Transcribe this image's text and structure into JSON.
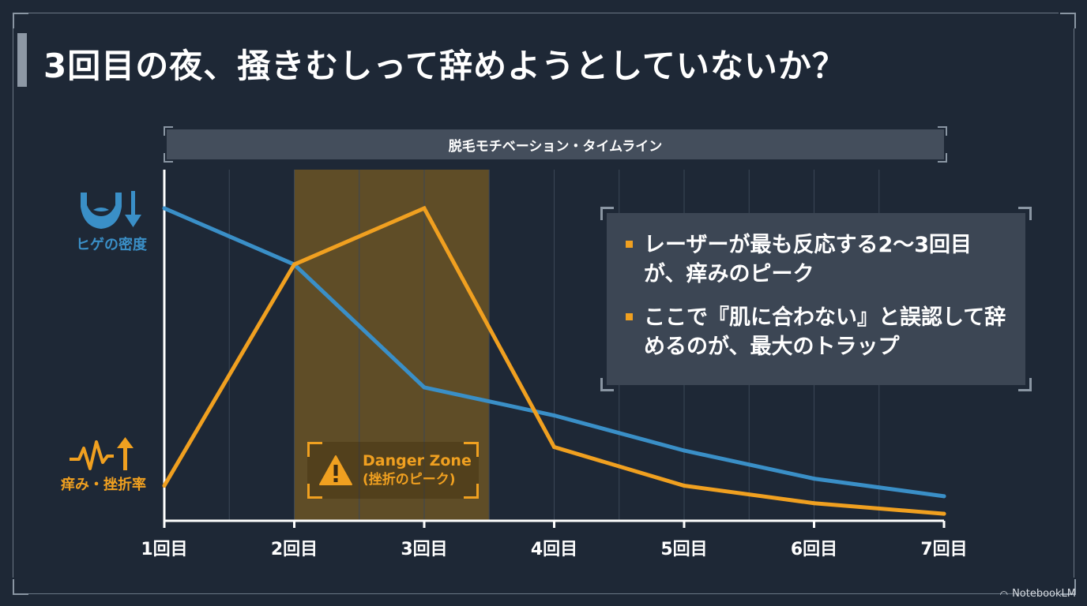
{
  "title": "3回目の夜、掻きむしって辞めようとしていないか？",
  "chart_data": {
    "type": "line",
    "title": "脱毛モチベーション・タイムライン",
    "categories": [
      "1回目",
      "2回目",
      "3回目",
      "4回目",
      "5回目",
      "6回目",
      "7回目"
    ],
    "x": [
      1,
      2,
      3,
      4,
      5,
      6,
      7
    ],
    "ylim": [
      0,
      100
    ],
    "series": [
      {
        "name": "ヒゲの密度",
        "color": "#3a8fc7",
        "values": [
          89,
          73,
          38,
          30,
          20,
          12,
          7
        ]
      },
      {
        "name": "痒み・挫折率",
        "color": "#f0a020",
        "values": [
          10,
          73,
          89,
          21,
          10,
          5,
          2
        ]
      }
    ],
    "highlight_range": [
      2,
      3.5
    ],
    "highlight_label": "Danger Zone",
    "highlight_sublabel": "(挫折のピーク)",
    "grid": true
  },
  "left_labels": {
    "density": {
      "text": "ヒゲの密度",
      "icon": "beard-down-icon",
      "color": "#3a8fc7"
    },
    "itch": {
      "text": "痒み・挫折率",
      "icon": "pulse-up-icon",
      "color": "#f0a020"
    }
  },
  "callout": {
    "items": [
      "レーザーが最も反応する2〜3回目が、痒みのピーク",
      "ここで『肌に合わない』と誤認して辞めるのが、最大のトラップ"
    ]
  },
  "warning_icon": "warning-triangle-icon",
  "watermark": "NotebookLM"
}
